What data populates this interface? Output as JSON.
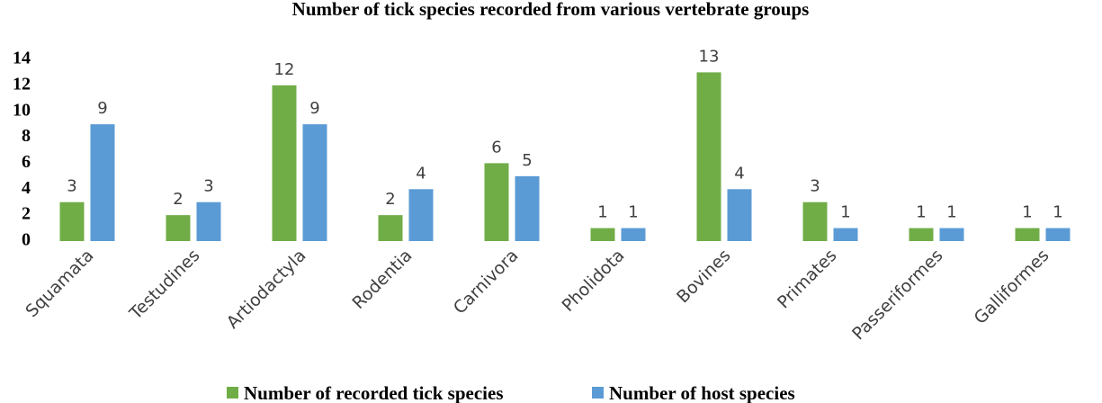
{
  "chart_data": {
    "type": "bar",
    "title": "Number of tick species recorded from various vertebrate groups",
    "categories": [
      "Squamata",
      "Testudines",
      "Artiodactyla",
      "Rodentia",
      "Carnivora",
      "Pholidota",
      "Bovines",
      "Primates",
      "Passeriformes",
      "Galliformes"
    ],
    "series": [
      {
        "name": "Number of recorded tick species",
        "color": "#70ad47",
        "values": [
          3,
          2,
          12,
          2,
          6,
          1,
          13,
          3,
          1,
          1
        ]
      },
      {
        "name": "Number of host species",
        "color": "#5b9bd5",
        "values": [
          9,
          3,
          9,
          4,
          5,
          1,
          4,
          1,
          1,
          1
        ]
      }
    ],
    "ylim": [
      0,
      14
    ],
    "yticks": [
      0,
      2,
      4,
      6,
      8,
      10,
      12,
      14
    ],
    "grid": false,
    "legend": "bottom"
  }
}
